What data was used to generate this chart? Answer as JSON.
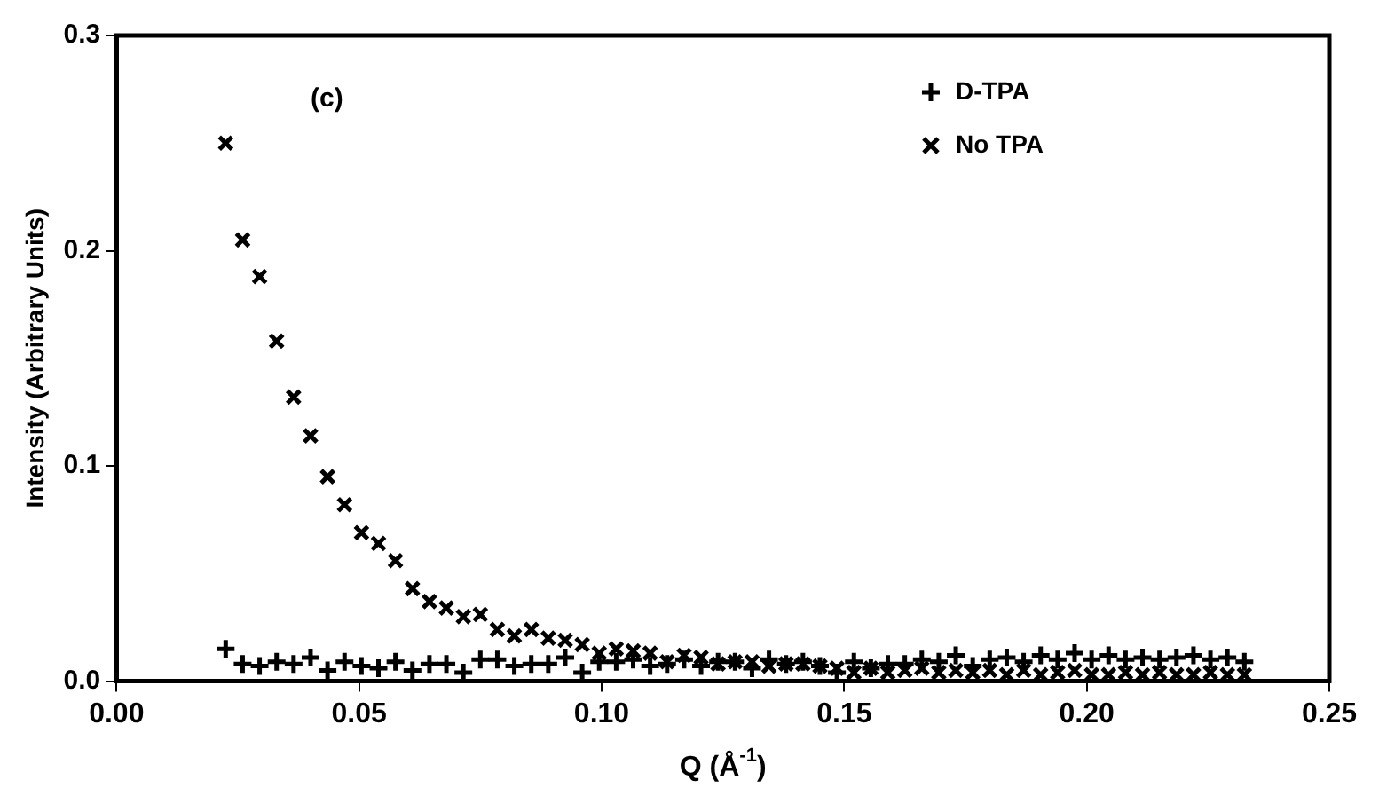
{
  "chart_data": {
    "type": "scatter",
    "xlabel": "Q (Å$^{-1}$)",
    "ylabel": "Intensity (Arbitrary Units)",
    "annotations": [
      "(c)"
    ],
    "x": [
      0.0225,
      0.026,
      0.0295,
      0.033,
      0.0365,
      0.04,
      0.0435,
      0.047,
      0.0505,
      0.054,
      0.0575,
      0.061,
      0.0645,
      0.068,
      0.0715,
      0.075,
      0.0785,
      0.082,
      0.0855,
      0.089,
      0.0925,
      0.096,
      0.0995,
      0.103,
      0.1065,
      0.11,
      0.1135,
      0.117,
      0.1205,
      0.124,
      0.1275,
      0.131,
      0.1345,
      0.138,
      0.1415,
      0.145,
      0.1485,
      0.152,
      0.1555,
      0.159,
      0.1625,
      0.166,
      0.1695,
      0.173,
      0.1765,
      0.18,
      0.1835,
      0.187,
      0.1905,
      0.194,
      0.1975,
      0.201,
      0.2045,
      0.208,
      0.2115,
      0.215,
      0.2185,
      0.222,
      0.2255,
      0.229,
      0.2325
    ],
    "series": [
      {
        "name": "D-TPA",
        "color": "#000000",
        "marker": "cross",
        "values": [
          0.015,
          0.008,
          0.007,
          0.009,
          0.008,
          0.011,
          0.005,
          0.009,
          0.007,
          0.006,
          0.009,
          0.005,
          0.008,
          0.008,
          0.004,
          0.01,
          0.01,
          0.007,
          0.008,
          0.008,
          0.011,
          0.004,
          0.009,
          0.009,
          0.01,
          0.007,
          0.008,
          0.01,
          0.007,
          0.009,
          0.009,
          0.006,
          0.01,
          0.008,
          0.009,
          0.007,
          0.004,
          0.009,
          0.006,
          0.008,
          0.008,
          0.01,
          0.009,
          0.012,
          0.007,
          0.01,
          0.011,
          0.009,
          0.012,
          0.01,
          0.013,
          0.01,
          0.012,
          0.01,
          0.011,
          0.01,
          0.011,
          0.012,
          0.01,
          0.011,
          0.009
        ]
      },
      {
        "name": "No TPA",
        "color": "#000000",
        "marker": "x",
        "values": [
          0.25,
          0.205,
          0.188,
          0.158,
          0.132,
          0.114,
          0.095,
          0.082,
          0.069,
          0.064,
          0.056,
          0.043,
          0.037,
          0.034,
          0.03,
          0.031,
          0.024,
          0.021,
          0.024,
          0.02,
          0.019,
          0.017,
          0.013,
          0.015,
          0.014,
          0.013,
          0.009,
          0.012,
          0.011,
          0.008,
          0.009,
          0.009,
          0.007,
          0.008,
          0.008,
          0.007,
          0.006,
          0.004,
          0.006,
          0.004,
          0.005,
          0.006,
          0.004,
          0.005,
          0.004,
          0.005,
          0.003,
          0.005,
          0.003,
          0.004,
          0.005,
          0.003,
          0.003,
          0.004,
          0.003,
          0.004,
          0.003,
          0.003,
          0.004,
          0.003,
          0.003
        ]
      }
    ],
    "xlim": [
      0,
      0.25
    ],
    "xticks": [
      {
        "value": 0,
        "label": "0.00"
      },
      0.05,
      {
        "value": 0.1,
        "label": "0.10"
      },
      0.15,
      {
        "value": 0.2,
        "label": "0.20"
      },
      0.25
    ],
    "ylim": [
      0,
      0.3
    ],
    "yticks": [
      {
        "value": 0,
        "label": "0.0"
      },
      0.1,
      0.2,
      0.3
    ],
    "grid": false,
    "legend": "top right"
  }
}
